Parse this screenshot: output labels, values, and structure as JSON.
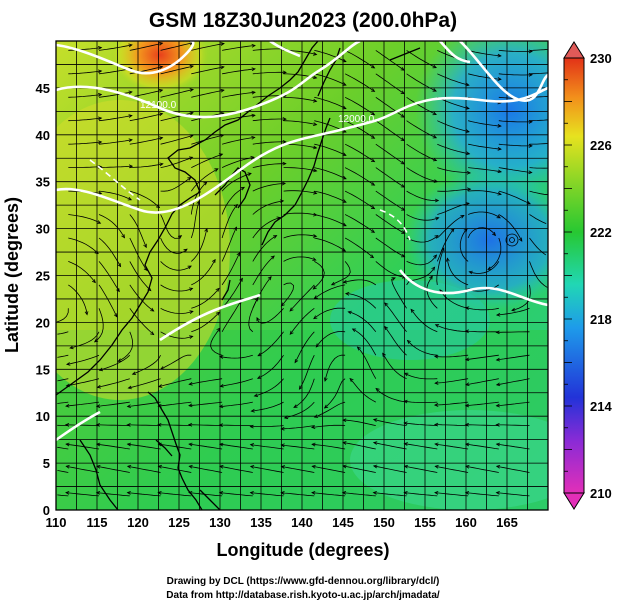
{
  "title": "GSM 18Z30Jun2023 (200.0hPa)",
  "xaxis": {
    "label": "Longitude (degrees)",
    "range": [
      110,
      170
    ],
    "ticks": [
      "110",
      "115",
      "120",
      "125",
      "130",
      "135",
      "140",
      "145",
      "150",
      "155",
      "160",
      "165"
    ]
  },
  "yaxis": {
    "label": "Latitude  (degrees)",
    "range": [
      0,
      50
    ],
    "ticks": [
      "0",
      "5",
      "10",
      "15",
      "20",
      "25",
      "30",
      "35",
      "40",
      "45"
    ]
  },
  "colorbar": {
    "range": [
      210,
      230
    ],
    "ticks": [
      "210",
      "214",
      "218",
      "222",
      "226",
      "230"
    ]
  },
  "contour_labels": [
    "12100.0",
    "12000.0"
  ],
  "credits": [
    "Drawing by DCL (https://www.gfd-dennou.org/library/dcl/)",
    "Data from http://database.rish.kyoto-u.ac.jp/arch/jmadata/"
  ]
}
